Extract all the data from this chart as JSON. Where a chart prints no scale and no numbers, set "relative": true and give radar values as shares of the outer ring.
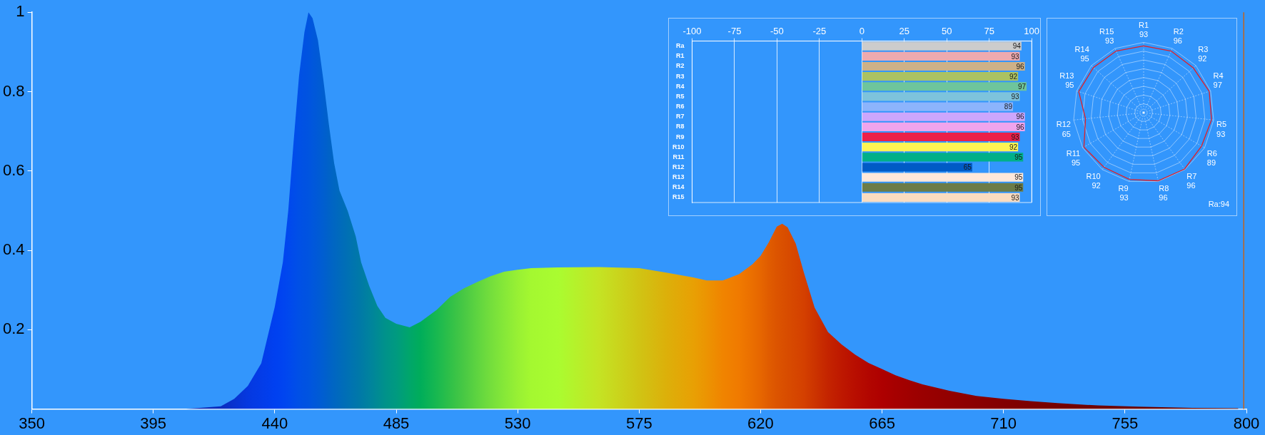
{
  "chart_data": [
    {
      "type": "area",
      "x": [
        407,
        420,
        425,
        430,
        435,
        440,
        443,
        445,
        447,
        449,
        451,
        452.5,
        454,
        456,
        458,
        460,
        462,
        464,
        467,
        470,
        472,
        475,
        478,
        481,
        485,
        490,
        494,
        500,
        505,
        510,
        515,
        520,
        525,
        530,
        535,
        545,
        560,
        575,
        585,
        595,
        600,
        606,
        612,
        617,
        620,
        623,
        626,
        628,
        630,
        633,
        636,
        640,
        645,
        650,
        655,
        660,
        665,
        670,
        675,
        680,
        690,
        700,
        710,
        720,
        730,
        745,
        760,
        780,
        797
      ],
      "values": [
        0,
        0.007,
        0.026,
        0.058,
        0.115,
        0.257,
        0.37,
        0.5,
        0.675,
        0.84,
        0.95,
        1.0,
        0.985,
        0.93,
        0.83,
        0.72,
        0.62,
        0.55,
        0.5,
        0.435,
        0.37,
        0.31,
        0.26,
        0.23,
        0.215,
        0.206,
        0.22,
        0.25,
        0.283,
        0.304,
        0.32,
        0.335,
        0.346,
        0.351,
        0.355,
        0.357,
        0.358,
        0.355,
        0.344,
        0.332,
        0.324,
        0.324,
        0.34,
        0.365,
        0.386,
        0.42,
        0.46,
        0.467,
        0.458,
        0.417,
        0.345,
        0.256,
        0.194,
        0.163,
        0.137,
        0.116,
        0.101,
        0.085,
        0.073,
        0.062,
        0.046,
        0.033,
        0.026,
        0.02,
        0.015,
        0.009,
        0.006,
        0.003,
        0.002
      ],
      "colors": [
        "#0a20a8",
        "#0a2cc0",
        "#0833d0",
        "#0538e0",
        "#033ce8",
        "#0040f0",
        "#0044f0",
        "#0048ee",
        "#004cea",
        "#0050e6",
        "#0052e2",
        "#0054e0",
        "#0057dc",
        "#005ad6",
        "#005ed0",
        "#0062c8",
        "#0066c2",
        "#006abc",
        "#0070b4",
        "#0076ac",
        "#007aa6",
        "#00829e",
        "#008a94",
        "#00928a",
        "#009a80",
        "#00a66a",
        "#00ad5a",
        "#18b850",
        "#30c048",
        "#48c844",
        "#5ed440",
        "#74de3c",
        "#86e838",
        "#98f034",
        "#a4f830",
        "#aafc30",
        "#c4e424",
        "#d0c414",
        "#dcb00a",
        "#e8a004",
        "#ec9402",
        "#f08400",
        "#f07a00",
        "#ea6e00",
        "#e66600",
        "#e05c00",
        "#dc5400",
        "#da5000",
        "#d84c00",
        "#d64600",
        "#d44000",
        "#cc3400",
        "#c42400",
        "#be1800",
        "#b80e00",
        "#b20600",
        "#ae0000",
        "#a60000",
        "#a00000",
        "#9a0000",
        "#920000",
        "#8a0000",
        "#820000",
        "#7c0000",
        "#760000",
        "#700000",
        "#6a0000",
        "#640000",
        "#600000"
      ],
      "xlim": [
        350,
        800
      ],
      "xticks": [
        350,
        395,
        440,
        485,
        530,
        575,
        620,
        665,
        710,
        755,
        800
      ],
      "ylim": [
        0,
        1
      ],
      "yticks": [
        0.2,
        0.4,
        0.6,
        0.8,
        1.0
      ],
      "grid": false,
      "ref_lines": [
        {
          "axis": "x",
          "value": 799,
          "color": "#c0641e"
        }
      ]
    },
    {
      "type": "bar",
      "orientation": "horizontal",
      "categories": [
        "Ra",
        "R1",
        "R2",
        "R3",
        "R4",
        "R5",
        "R6",
        "R7",
        "R8",
        "R9",
        "R10",
        "R11",
        "R12",
        "R13",
        "R14",
        "R15"
      ],
      "values": [
        94,
        93,
        96,
        92,
        97,
        93,
        89,
        96,
        96,
        93,
        92,
        95,
        65,
        95,
        95,
        93
      ],
      "colors": [
        "#cccccc",
        "#eeaaaf",
        "#cdb188",
        "#abc262",
        "#6ec59c",
        "#7dc3dc",
        "#8cb4fc",
        "#cca6fc",
        "#f0a4ec",
        "#ec2049",
        "#fff452",
        "#00b089",
        "#005bc6",
        "#fee8da",
        "#6c7c48",
        "#fadcc0"
      ],
      "xlim": [
        -100,
        100
      ],
      "xticks": [
        -100,
        -75,
        -50,
        -25,
        0,
        25,
        50,
        75,
        100
      ],
      "grid": "x",
      "data_labels": true
    },
    {
      "type": "radar",
      "categories": [
        "R1",
        "R2",
        "R3",
        "R4",
        "R5",
        "R6",
        "R7",
        "R8",
        "R9",
        "R10",
        "R11",
        "R12",
        "R13",
        "R14",
        "R15"
      ],
      "series": [
        {
          "color": "#e02028",
          "values": [
            0.95,
            0.96,
            0.95,
            0.98,
            0.97,
            0.95,
            0.99,
            0.99,
            0.97,
            0.96,
            0.98,
            0.83,
            0.97,
            0.96,
            0.96
          ]
        }
      ],
      "relative": true,
      "value_labels": [
        "93",
        "96",
        "92",
        "97",
        "93",
        "89",
        "96",
        "96",
        "93",
        "92",
        "95",
        "65",
        "95",
        "95",
        "93"
      ],
      "marker": "none",
      "annotations": [
        "Ra:94"
      ]
    }
  ]
}
